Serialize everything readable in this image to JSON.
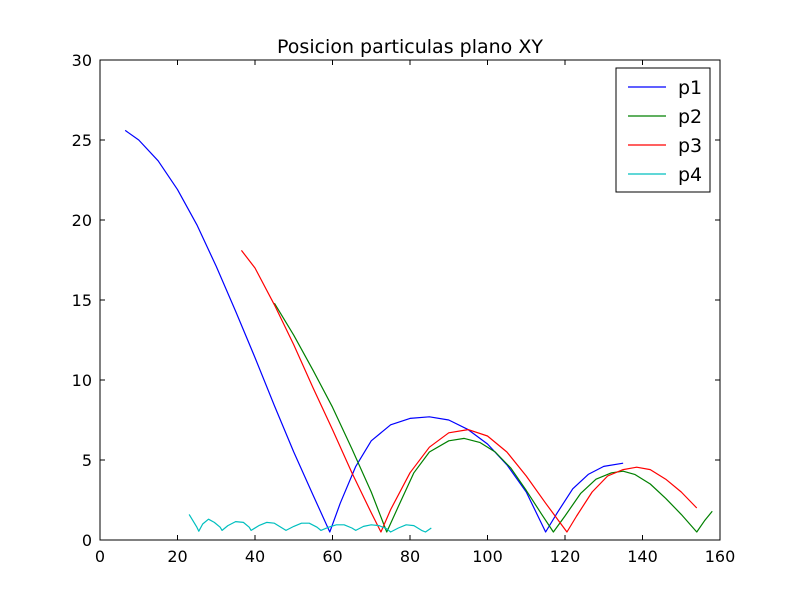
{
  "chart_data": {
    "type": "line",
    "title": "Posicion particulas plano XY",
    "xlabel": "",
    "ylabel": "",
    "xlim": [
      0,
      160
    ],
    "ylim": [
      0,
      30
    ],
    "xticks": [
      0,
      20,
      40,
      60,
      80,
      100,
      120,
      140,
      160
    ],
    "yticks": [
      0,
      5,
      10,
      15,
      20,
      25,
      30
    ],
    "grid": false,
    "legend_position": "top-right",
    "series": [
      {
        "name": "p1",
        "color": "#0000ff",
        "points": [
          [
            6.5,
            25.6
          ],
          [
            10,
            25
          ],
          [
            15,
            23.7
          ],
          [
            20,
            21.9
          ],
          [
            25,
            19.7
          ],
          [
            30,
            17.1
          ],
          [
            35,
            14.3
          ],
          [
            40,
            11.4
          ],
          [
            45,
            8.4
          ],
          [
            50,
            5.5
          ],
          [
            55,
            2.8
          ],
          [
            59.3,
            0.5
          ],
          [
            62,
            2.3
          ],
          [
            66,
            4.6
          ],
          [
            70,
            6.2
          ],
          [
            75,
            7.2
          ],
          [
            80,
            7.6
          ],
          [
            85,
            7.7
          ],
          [
            90,
            7.5
          ],
          [
            95,
            6.9
          ],
          [
            100,
            6.0
          ],
          [
            105,
            4.7
          ],
          [
            110,
            3.0
          ],
          [
            115,
            0.5
          ],
          [
            118,
            1.7
          ],
          [
            122,
            3.2
          ],
          [
            126,
            4.1
          ],
          [
            130,
            4.6
          ],
          [
            135,
            4.8
          ]
        ]
      },
      {
        "name": "p2",
        "color": "#008000",
        "points": [
          [
            45,
            14.8
          ],
          [
            50,
            12.8
          ],
          [
            55,
            10.6
          ],
          [
            60,
            8.3
          ],
          [
            65,
            5.7
          ],
          [
            70,
            3.0
          ],
          [
            74,
            0.5
          ],
          [
            77,
            2.1
          ],
          [
            81,
            4.2
          ],
          [
            85,
            5.5
          ],
          [
            90,
            6.2
          ],
          [
            94,
            6.35
          ],
          [
            98,
            6.1
          ],
          [
            102,
            5.5
          ],
          [
            106,
            4.5
          ],
          [
            110,
            3.1
          ],
          [
            114,
            1.6
          ],
          [
            117,
            0.5
          ],
          [
            120,
            1.5
          ],
          [
            124,
            2.9
          ],
          [
            128,
            3.8
          ],
          [
            132,
            4.2
          ],
          [
            135,
            4.3
          ],
          [
            138,
            4.1
          ],
          [
            142,
            3.5
          ],
          [
            146,
            2.6
          ],
          [
            150,
            1.6
          ],
          [
            154,
            0.5
          ],
          [
            156,
            1.2
          ],
          [
            158,
            1.8
          ]
        ]
      },
      {
        "name": "p3",
        "color": "#ff0000",
        "points": [
          [
            36.5,
            18.1
          ],
          [
            40,
            17
          ],
          [
            45,
            14.7
          ],
          [
            50,
            12.2
          ],
          [
            55,
            9.5
          ],
          [
            60,
            6.9
          ],
          [
            65,
            4.2
          ],
          [
            70,
            1.7
          ],
          [
            72.5,
            0.5
          ],
          [
            75,
            1.9
          ],
          [
            80,
            4.2
          ],
          [
            85,
            5.8
          ],
          [
            90,
            6.7
          ],
          [
            95,
            6.9
          ],
          [
            100,
            6.5
          ],
          [
            105,
            5.5
          ],
          [
            110,
            4.0
          ],
          [
            115,
            2.3
          ],
          [
            120.5,
            0.5
          ],
          [
            123,
            1.5
          ],
          [
            127,
            3.0
          ],
          [
            131,
            4.0
          ],
          [
            135,
            4.4
          ],
          [
            138.5,
            4.55
          ],
          [
            142,
            4.4
          ],
          [
            146,
            3.8
          ],
          [
            150,
            3.0
          ],
          [
            154,
            2.0
          ]
        ]
      },
      {
        "name": "p4",
        "color": "#00bfbf",
        "points": [
          [
            23,
            1.6
          ],
          [
            25,
            0.8
          ],
          [
            25.5,
            0.55
          ],
          [
            26.5,
            1.0
          ],
          [
            28,
            1.3
          ],
          [
            29.5,
            1.1
          ],
          [
            31,
            0.8
          ],
          [
            31.5,
            0.6
          ],
          [
            33,
            0.9
          ],
          [
            35,
            1.15
          ],
          [
            37,
            1.1
          ],
          [
            38.5,
            0.8
          ],
          [
            39,
            0.6
          ],
          [
            41,
            0.9
          ],
          [
            43,
            1.1
          ],
          [
            45,
            1.05
          ],
          [
            47,
            0.75
          ],
          [
            48,
            0.6
          ],
          [
            50,
            0.85
          ],
          [
            52,
            1.05
          ],
          [
            54,
            1.05
          ],
          [
            56,
            0.8
          ],
          [
            57,
            0.6
          ],
          [
            59,
            0.8
          ],
          [
            61,
            0.95
          ],
          [
            63,
            0.95
          ],
          [
            65,
            0.75
          ],
          [
            66,
            0.6
          ],
          [
            68,
            0.85
          ],
          [
            70,
            0.95
          ],
          [
            72,
            0.9
          ],
          [
            74,
            0.7
          ],
          [
            75,
            0.5
          ],
          [
            77,
            0.75
          ],
          [
            79,
            0.95
          ],
          [
            81,
            0.9
          ],
          [
            83,
            0.6
          ],
          [
            84,
            0.5
          ],
          [
            85.5,
            0.75
          ]
        ]
      }
    ]
  }
}
